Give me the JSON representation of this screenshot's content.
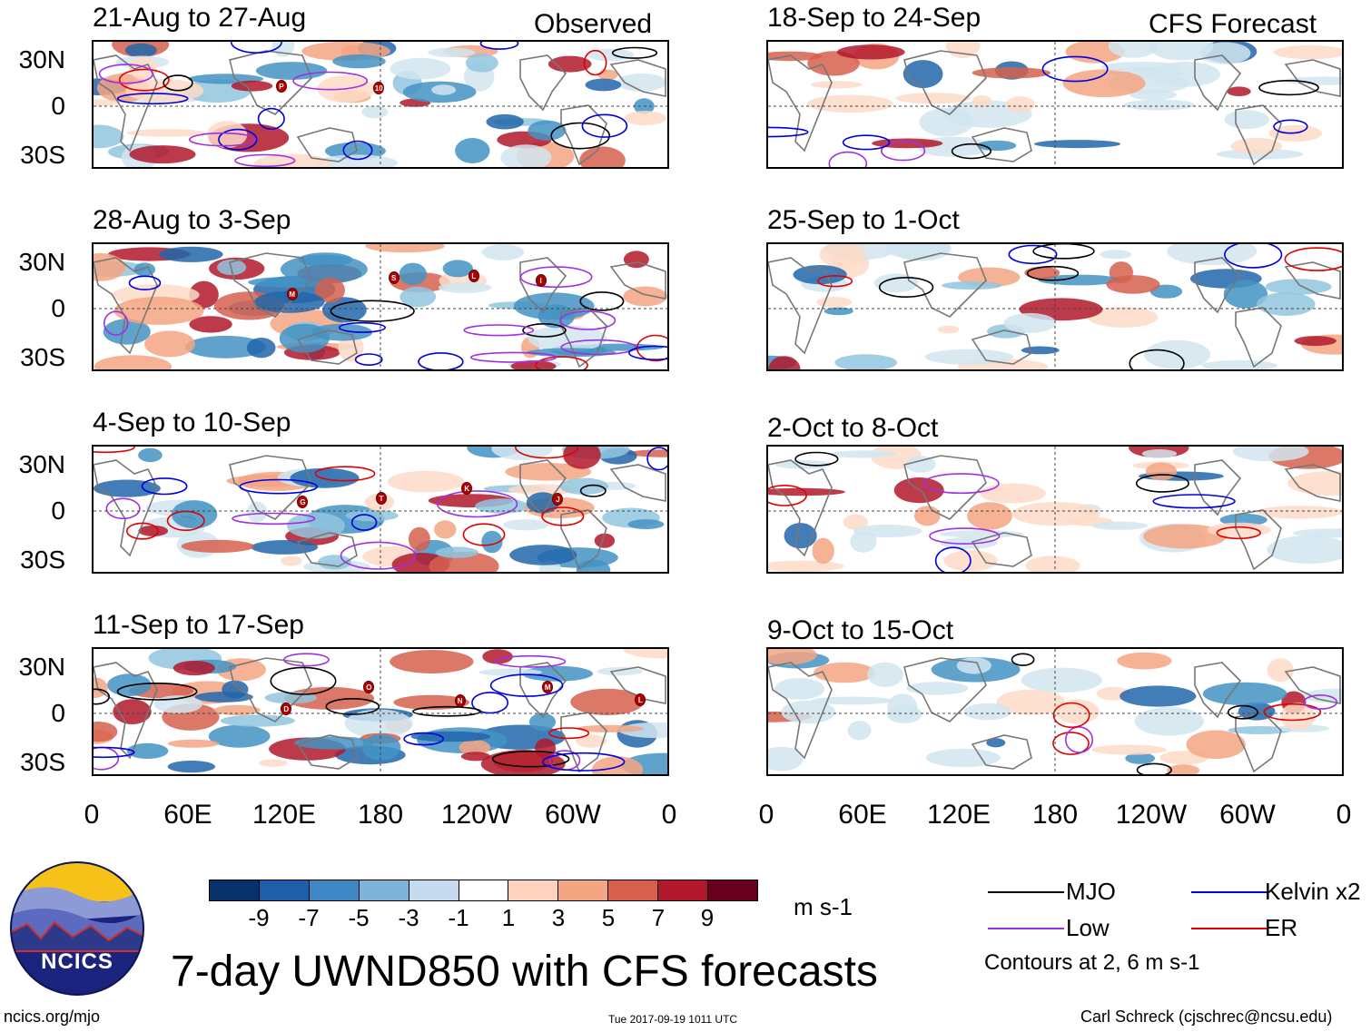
{
  "panels_left": [
    {
      "title": "21-Aug to 27-Aug",
      "tag": "Observed",
      "storms": [
        "P",
        "10"
      ]
    },
    {
      "title": "28-Aug to 3-Sep",
      "tag": "",
      "storms": [
        "M",
        "S",
        "L",
        "I"
      ]
    },
    {
      "title": "4-Sep to 10-Sep",
      "tag": "",
      "storms": [
        "G",
        "T",
        "K",
        "J"
      ]
    },
    {
      "title": "11-Sep to 17-Sep",
      "tag": "",
      "storms": [
        "D",
        "O",
        "N",
        "M",
        "L"
      ]
    }
  ],
  "panels_right": [
    {
      "title": "18-Sep to 24-Sep",
      "tag": "CFS Forecast"
    },
    {
      "title": "25-Sep to 1-Oct",
      "tag": ""
    },
    {
      "title": "2-Oct to 8-Oct",
      "tag": ""
    },
    {
      "title": "9-Oct to 15-Oct",
      "tag": ""
    }
  ],
  "lat_labels": [
    "30N",
    "0",
    "30S"
  ],
  "lon_labels": [
    "0",
    "60E",
    "120E",
    "180",
    "120W",
    "60W",
    "0"
  ],
  "colorbar": {
    "colors": [
      "#08306b",
      "#1f5fa8",
      "#3f86c4",
      "#7fb3d8",
      "#c6dbef",
      "#ffffff",
      "#fdd3c0",
      "#f4a582",
      "#d6604d",
      "#b2182b",
      "#67001f"
    ],
    "ticks": [
      "-9",
      "-7",
      "-5",
      "-3",
      "-1",
      "1",
      "3",
      "5",
      "7",
      "9"
    ],
    "units": "m s-1"
  },
  "legend": {
    "items": [
      {
        "label": "MJO",
        "color": "#000000"
      },
      {
        "label": "Kelvin x2",
        "color": "#0000dd"
      },
      {
        "label": "Low",
        "color": "#a030e0"
      },
      {
        "label": "ER",
        "color": "#e00000"
      }
    ],
    "note": "Contours at 2, 6 m s-1"
  },
  "main_title": "7-day UWND850 with CFS forecasts",
  "logo_text": "NCICS",
  "footer": {
    "url": "ncics.org/mjo",
    "timestamp": "Tue 2017-09-19 1011 UTC",
    "author": "Carl Schreck (cjschrec@ncsu.edu)"
  }
}
